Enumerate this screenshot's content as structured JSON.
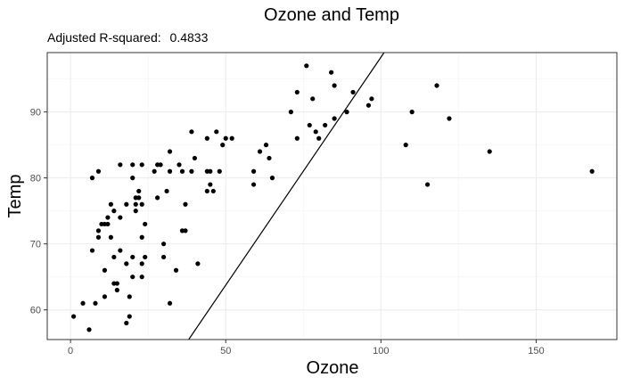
{
  "chart_data": {
    "type": "scatter",
    "title": "Ozone and Temp",
    "subtitle_label": "Adjusted R-squared:",
    "subtitle_value": "0.4833",
    "xlabel": "Ozone",
    "ylabel": "Temp",
    "xlim": [
      -7.5,
      176
    ],
    "ylim": [
      55.5,
      99
    ],
    "xticks": [
      0,
      50,
      100,
      150
    ],
    "yticks": [
      60,
      70,
      80,
      90
    ],
    "grid": true,
    "fit_line": {
      "intercept": 29.2,
      "slope": 0.691
    },
    "points": [
      [
        1,
        59
      ],
      [
        4,
        61
      ],
      [
        6,
        57
      ],
      [
        7,
        80
      ],
      [
        7,
        69
      ],
      [
        8,
        61
      ],
      [
        9,
        71
      ],
      [
        9,
        72
      ],
      [
        9,
        81
      ],
      [
        10,
        73
      ],
      [
        11,
        73
      ],
      [
        11,
        66
      ],
      [
        11,
        62
      ],
      [
        12,
        74
      ],
      [
        12,
        73
      ],
      [
        13,
        71
      ],
      [
        13,
        76
      ],
      [
        14,
        64
      ],
      [
        14,
        68
      ],
      [
        14,
        75
      ],
      [
        15,
        63
      ],
      [
        15,
        64
      ],
      [
        16,
        82
      ],
      [
        16,
        74
      ],
      [
        16,
        69
      ],
      [
        18,
        58
      ],
      [
        18,
        67
      ],
      [
        18,
        76
      ],
      [
        19,
        59
      ],
      [
        19,
        62
      ],
      [
        20,
        80
      ],
      [
        20,
        68
      ],
      [
        20,
        65
      ],
      [
        20,
        82
      ],
      [
        21,
        77
      ],
      [
        21,
        75
      ],
      [
        21,
        76
      ],
      [
        22,
        77
      ],
      [
        22,
        78
      ],
      [
        23,
        71
      ],
      [
        23,
        82
      ],
      [
        23,
        67
      ],
      [
        23,
        65
      ],
      [
        23,
        76
      ],
      [
        24,
        73
      ],
      [
        24,
        68
      ],
      [
        27,
        81
      ],
      [
        28,
        77
      ],
      [
        28,
        82
      ],
      [
        29,
        82
      ],
      [
        30,
        70
      ],
      [
        30,
        68
      ],
      [
        31,
        78
      ],
      [
        32,
        61
      ],
      [
        32,
        84
      ],
      [
        32,
        81
      ],
      [
        34,
        66
      ],
      [
        35,
        82
      ],
      [
        36,
        81
      ],
      [
        36,
        72
      ],
      [
        37,
        72
      ],
      [
        37,
        76
      ],
      [
        39,
        87
      ],
      [
        39,
        81
      ],
      [
        40,
        83
      ],
      [
        41,
        67
      ],
      [
        44,
        81
      ],
      [
        44,
        78
      ],
      [
        44,
        86
      ],
      [
        45,
        81
      ],
      [
        45,
        79
      ],
      [
        46,
        78
      ],
      [
        47,
        87
      ],
      [
        48,
        81
      ],
      [
        49,
        85
      ],
      [
        50,
        86
      ],
      [
        52,
        86
      ],
      [
        59,
        79
      ],
      [
        59,
        81
      ],
      [
        61,
        84
      ],
      [
        63,
        85
      ],
      [
        64,
        83
      ],
      [
        65,
        80
      ],
      [
        71,
        90
      ],
      [
        73,
        86
      ],
      [
        73,
        93
      ],
      [
        76,
        97
      ],
      [
        77,
        88
      ],
      [
        78,
        92
      ],
      [
        79,
        87
      ],
      [
        80,
        86
      ],
      [
        82,
        88
      ],
      [
        84,
        96
      ],
      [
        85,
        94
      ],
      [
        85,
        89
      ],
      [
        89,
        90
      ],
      [
        91,
        93
      ],
      [
        96,
        91
      ],
      [
        97,
        92
      ],
      [
        108,
        85
      ],
      [
        110,
        90
      ],
      [
        115,
        79
      ],
      [
        118,
        94
      ],
      [
        122,
        89
      ],
      [
        135,
        84
      ],
      [
        168,
        81
      ]
    ]
  }
}
